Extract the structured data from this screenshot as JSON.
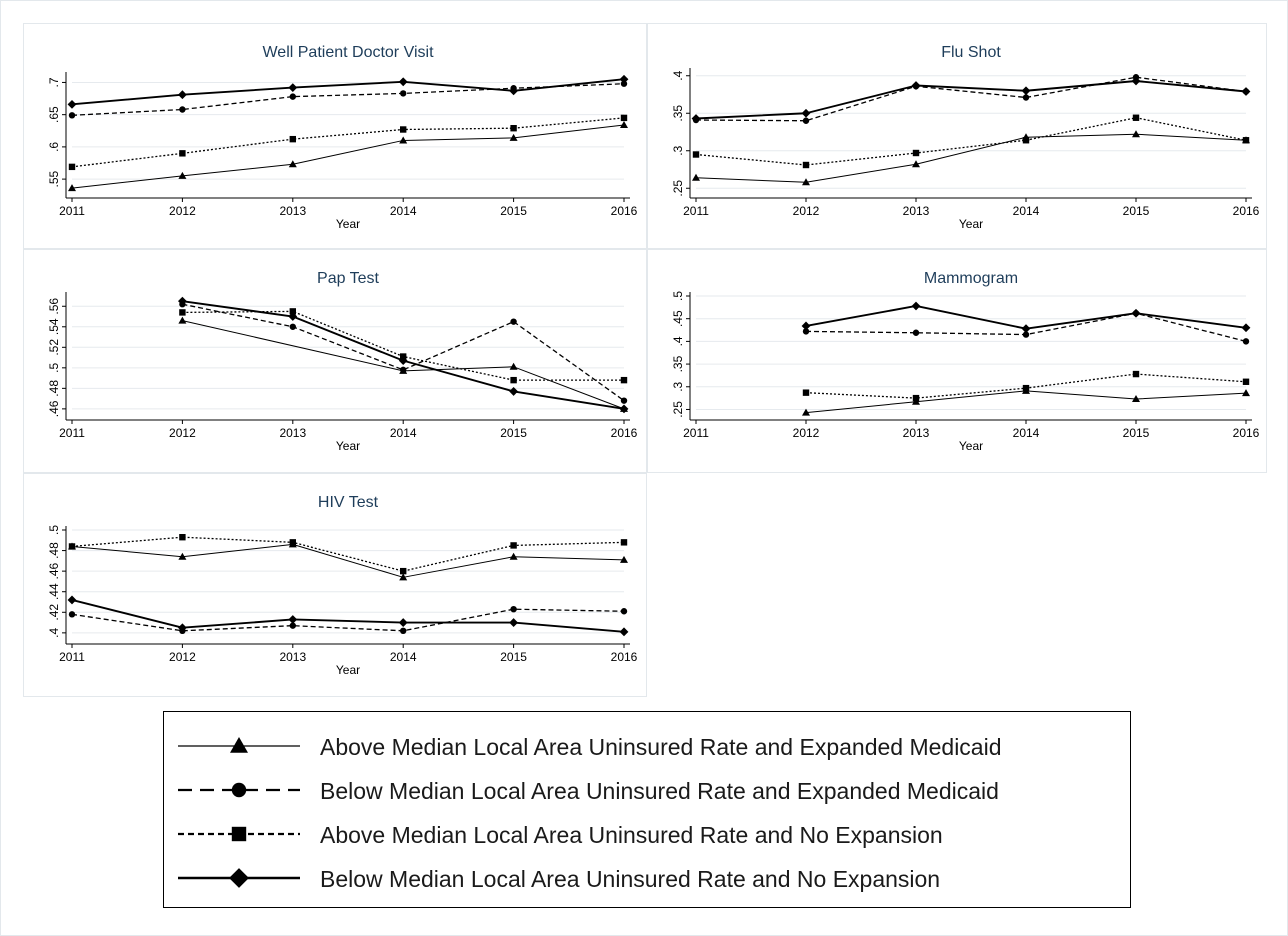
{
  "colors": {
    "line": "#000000",
    "title": "#1e3d5a",
    "grid": "#e6eaee",
    "panel_border": "#e3e8ec",
    "axis_text": "#000000"
  },
  "chart_data": [
    {
      "type": "line",
      "title": "Well Patient Doctor Visit",
      "xlabel": "Year",
      "ylabel": "",
      "x": [
        2011,
        2012,
        2013,
        2014,
        2015,
        2016
      ],
      "ylim": [
        0.53,
        0.71
      ],
      "yticks": [
        0.55,
        0.6,
        0.65,
        0.7
      ],
      "ytick_labels": [
        ".55",
        ".6",
        ".65",
        ".7"
      ],
      "grid": true,
      "series": [
        {
          "name": "Above Median Local Area Uninsured Rate and Expanded Medicaid",
          "marker": "triangle",
          "dash": "solid",
          "values": [
            0.536,
            0.555,
            0.573,
            0.61,
            0.614,
            0.634
          ]
        },
        {
          "name": "Below Median Local Area Uninsured Rate and Expanded Medicaid",
          "marker": "circle",
          "dash": "dashed",
          "values": [
            0.649,
            0.658,
            0.678,
            0.683,
            0.691,
            0.698
          ]
        },
        {
          "name": "Above Median Local Area Uninsured Rate and No Expansion",
          "marker": "square",
          "dash": "dotted",
          "values": [
            0.569,
            0.59,
            0.612,
            0.627,
            0.629,
            0.645
          ]
        },
        {
          "name": "Below Median Local Area Uninsured Rate and No Expansion",
          "marker": "diamond",
          "dash": "thick",
          "values": [
            0.666,
            0.681,
            0.692,
            0.701,
            0.687,
            0.705
          ]
        }
      ]
    },
    {
      "type": "line",
      "title": "Flu Shot",
      "xlabel": "Year",
      "ylabel": "",
      "x": [
        2011,
        2012,
        2013,
        2014,
        2015,
        2016
      ],
      "ylim": [
        0.245,
        0.405
      ],
      "yticks": [
        0.25,
        0.3,
        0.35,
        0.4
      ],
      "ytick_labels": [
        ".25",
        ".3",
        ".35",
        ".4"
      ],
      "grid": true,
      "series": [
        {
          "name": "Above Median Local Area Uninsured Rate and Expanded Medicaid",
          "marker": "triangle",
          "dash": "solid",
          "values": [
            0.264,
            0.258,
            0.282,
            0.318,
            0.322,
            0.314
          ]
        },
        {
          "name": "Below Median Local Area Uninsured Rate and Expanded Medicaid",
          "marker": "circle",
          "dash": "dashed",
          "values": [
            0.341,
            0.34,
            0.386,
            0.371,
            0.398,
            0.379
          ]
        },
        {
          "name": "Above Median Local Area Uninsured Rate and No Expansion",
          "marker": "square",
          "dash": "dotted",
          "values": [
            0.295,
            0.281,
            0.297,
            0.314,
            0.344,
            0.314
          ]
        },
        {
          "name": "Below Median Local Area Uninsured Rate and No Expansion",
          "marker": "diamond",
          "dash": "thick",
          "values": [
            0.343,
            0.35,
            0.387,
            0.38,
            0.393,
            0.379
          ]
        }
      ]
    },
    {
      "type": "line",
      "title": "Pap Test",
      "xlabel": "Year",
      "ylabel": "",
      "x": [
        2011,
        2012,
        2013,
        2014,
        2015,
        2016
      ],
      "ylim": [
        0.455,
        0.57
      ],
      "yticks": [
        0.46,
        0.48,
        0.5,
        0.52,
        0.54,
        0.56
      ],
      "ytick_labels": [
        ".46",
        ".48",
        ".5",
        ".52",
        ".54",
        ".56"
      ],
      "grid": true,
      "series": [
        {
          "name": "Above Median Local Area Uninsured Rate and Expanded Medicaid",
          "marker": "triangle",
          "dash": "solid",
          "values": [
            null,
            0.546,
            null,
            0.497,
            0.501,
            0.46
          ]
        },
        {
          "name": "Below Median Local Area Uninsured Rate and Expanded Medicaid",
          "marker": "circle",
          "dash": "dashed",
          "values": [
            null,
            0.562,
            0.54,
            0.498,
            0.545,
            0.468
          ]
        },
        {
          "name": "Above Median Local Area Uninsured Rate and No Expansion",
          "marker": "square",
          "dash": "dotted",
          "values": [
            null,
            0.554,
            0.555,
            0.511,
            0.488,
            0.488
          ]
        },
        {
          "name": "Below Median Local Area Uninsured Rate and No Expansion",
          "marker": "diamond",
          "dash": "thick",
          "values": [
            null,
            0.565,
            0.55,
            0.507,
            0.477,
            0.46
          ]
        }
      ]
    },
    {
      "type": "line",
      "title": "Mammogram",
      "xlabel": "Year",
      "ylabel": "",
      "x": [
        2011,
        2012,
        2013,
        2014,
        2015,
        2016
      ],
      "ylim": [
        0.24,
        0.5
      ],
      "yticks": [
        0.25,
        0.3,
        0.35,
        0.4,
        0.45,
        0.5
      ],
      "ytick_labels": [
        ".25",
        ".3",
        ".35",
        ".4",
        ".45",
        ".5"
      ],
      "grid": true,
      "series": [
        {
          "name": "Above Median Local Area Uninsured Rate and Expanded Medicaid",
          "marker": "triangle",
          "dash": "solid",
          "values": [
            null,
            0.243,
            0.267,
            0.291,
            0.273,
            0.286
          ]
        },
        {
          "name": "Below Median Local Area Uninsured Rate and Expanded Medicaid",
          "marker": "circle",
          "dash": "dashed",
          "values": [
            null,
            0.422,
            0.419,
            0.415,
            0.462,
            0.4
          ]
        },
        {
          "name": "Above Median Local Area Uninsured Rate and No Expansion",
          "marker": "square",
          "dash": "dotted",
          "values": [
            null,
            0.287,
            0.275,
            0.297,
            0.328,
            0.311
          ]
        },
        {
          "name": "Below Median Local Area Uninsured Rate and No Expansion",
          "marker": "diamond",
          "dash": "thick",
          "values": [
            null,
            0.434,
            0.478,
            0.428,
            0.462,
            0.43
          ]
        }
      ]
    },
    {
      "type": "line",
      "title": "HIV Test",
      "xlabel": "Year",
      "ylabel": "",
      "x": [
        2011,
        2012,
        2013,
        2014,
        2015,
        2016
      ],
      "ylim": [
        0.395,
        0.5
      ],
      "yticks": [
        0.4,
        0.42,
        0.44,
        0.46,
        0.48,
        0.5
      ],
      "ytick_labels": [
        ".4",
        ".42",
        ".44",
        ".46",
        ".48",
        ".5"
      ],
      "grid": true,
      "series": [
        {
          "name": "Above Median Local Area Uninsured Rate and Expanded Medicaid",
          "marker": "triangle",
          "dash": "solid",
          "values": [
            0.484,
            0.474,
            0.486,
            0.454,
            0.474,
            0.471
          ]
        },
        {
          "name": "Below Median Local Area Uninsured Rate and Expanded Medicaid",
          "marker": "circle",
          "dash": "dashed",
          "values": [
            0.418,
            0.402,
            0.407,
            0.402,
            0.423,
            0.421
          ]
        },
        {
          "name": "Above Median Local Area Uninsured Rate and No Expansion",
          "marker": "square",
          "dash": "dotted",
          "values": [
            0.484,
            0.493,
            0.488,
            0.46,
            0.485,
            0.488
          ]
        },
        {
          "name": "Below Median Local Area Uninsured Rate and No Expansion",
          "marker": "diamond",
          "dash": "thick",
          "values": [
            0.432,
            0.405,
            0.413,
            0.41,
            0.41,
            0.401
          ]
        }
      ]
    }
  ],
  "legend": {
    "items": [
      {
        "label": "Above Median Local Area Uninsured Rate and Expanded Medicaid",
        "marker": "triangle",
        "dash": "solid"
      },
      {
        "label": "Below Median Local Area Uninsured Rate and Expanded Medicaid",
        "marker": "circle",
        "dash": "dashed"
      },
      {
        "label": "Above Median Local Area Uninsured Rate and No Expansion",
        "marker": "square",
        "dash": "dotted"
      },
      {
        "label": "Below Median Local Area Uninsured Rate and No Expansion",
        "marker": "diamond",
        "dash": "thick"
      }
    ]
  }
}
